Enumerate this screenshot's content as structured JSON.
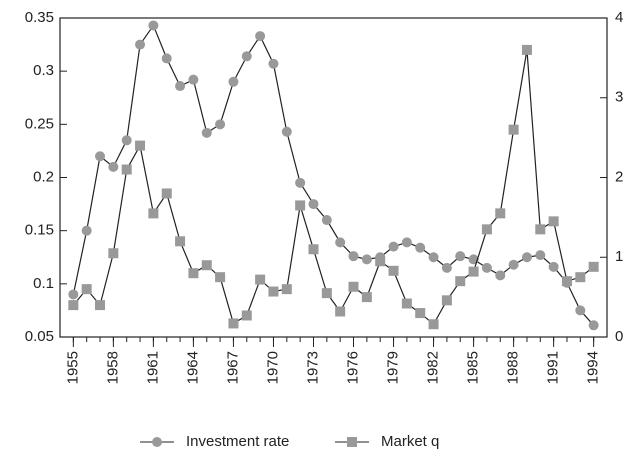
{
  "chart_data": {
    "type": "line",
    "x": [
      1955,
      1956,
      1957,
      1958,
      1959,
      1960,
      1961,
      1962,
      1963,
      1964,
      1965,
      1966,
      1967,
      1968,
      1969,
      1970,
      1971,
      1972,
      1973,
      1974,
      1975,
      1976,
      1977,
      1978,
      1979,
      1980,
      1981,
      1982,
      1983,
      1984,
      1985,
      1986,
      1987,
      1988,
      1989,
      1990,
      1991,
      1992,
      1993,
      1994
    ],
    "series": [
      {
        "name": "Investment rate",
        "color": "#999999",
        "marker": "circle",
        "values": [
          0.09,
          0.15,
          0.22,
          0.21,
          0.235,
          0.325,
          0.343,
          0.312,
          0.286,
          0.292,
          0.242,
          0.25,
          0.29,
          0.314,
          0.333,
          0.307,
          0.243,
          0.195,
          0.175,
          0.16,
          0.139,
          0.126,
          0.123,
          0.125,
          0.135,
          0.139,
          0.134,
          0.125,
          0.115,
          0.126,
          0.123,
          0.115,
          0.108,
          0.118,
          0.125,
          0.127,
          0.116,
          0.101,
          0.075,
          0.061
        ]
      },
      {
        "name": "Market q",
        "color": "#999999",
        "marker": "square",
        "axis": "y2",
        "values": [
          0.4,
          0.6,
          0.4,
          1.05,
          2.1,
          2.4,
          1.55,
          1.8,
          1.2,
          0.8,
          0.9,
          0.75,
          0.17,
          0.27,
          0.72,
          0.57,
          0.6,
          1.65,
          1.1,
          0.55,
          0.32,
          0.63,
          0.5,
          0.95,
          0.83,
          0.42,
          0.3,
          0.16,
          0.46,
          0.7,
          0.82,
          1.35,
          1.55,
          2.6,
          3.6,
          1.35,
          1.45,
          0.7,
          0.75,
          0.88
        ]
      }
    ],
    "xlim": [
      1954,
      1995
    ],
    "xticks": [
      1955,
      1958,
      1961,
      1964,
      1967,
      1970,
      1973,
      1976,
      1979,
      1982,
      1985,
      1988,
      1991,
      1994
    ],
    "ylim": [
      0.05,
      0.35
    ],
    "yticks": [
      0.05,
      0.1,
      0.15,
      0.2,
      0.25,
      0.3,
      0.35
    ],
    "y2lim": [
      0,
      4
    ],
    "y2ticks": [
      0,
      1,
      2,
      3,
      4
    ],
    "legend": "bottom"
  }
}
